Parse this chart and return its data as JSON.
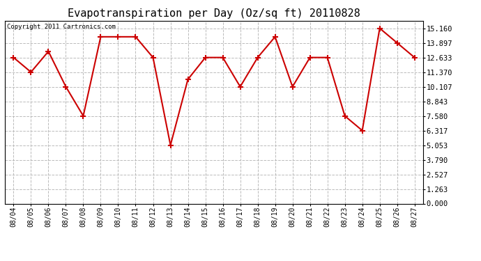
{
  "title": "Evapotranspiration per Day (Oz/sq ft) 20110828",
  "copyright_text": "Copyright 2011 Cartronics.com",
  "x_labels": [
    "08/04",
    "08/05",
    "08/06",
    "08/07",
    "08/08",
    "08/09",
    "08/10",
    "08/11",
    "08/12",
    "08/13",
    "08/14",
    "08/15",
    "08/16",
    "08/17",
    "08/18",
    "08/19",
    "08/20",
    "08/21",
    "08/22",
    "08/23",
    "08/24",
    "08/25",
    "08/26",
    "08/27"
  ],
  "y_values": [
    12.633,
    11.37,
    13.16,
    10.107,
    7.58,
    14.424,
    14.424,
    14.424,
    12.633,
    5.053,
    10.74,
    12.633,
    12.633,
    10.107,
    12.633,
    14.424,
    10.107,
    12.633,
    12.633,
    7.58,
    6.317,
    15.16,
    13.897,
    12.633
  ],
  "line_color": "#cc0000",
  "marker": "+",
  "marker_size": 6,
  "line_width": 1.5,
  "y_ticks": [
    0.0,
    1.263,
    2.527,
    3.79,
    5.053,
    6.317,
    7.58,
    8.843,
    10.107,
    11.37,
    12.633,
    13.897,
    15.16
  ],
  "ylim": [
    0.0,
    15.8
  ],
  "bg_color": "#ffffff",
  "plot_bg_color": "#ffffff",
  "grid_color": "#bbbbbb",
  "title_fontsize": 11,
  "copyright_fontsize": 6.5,
  "tick_fontsize": 7,
  "y_tick_fontsize": 7.5
}
